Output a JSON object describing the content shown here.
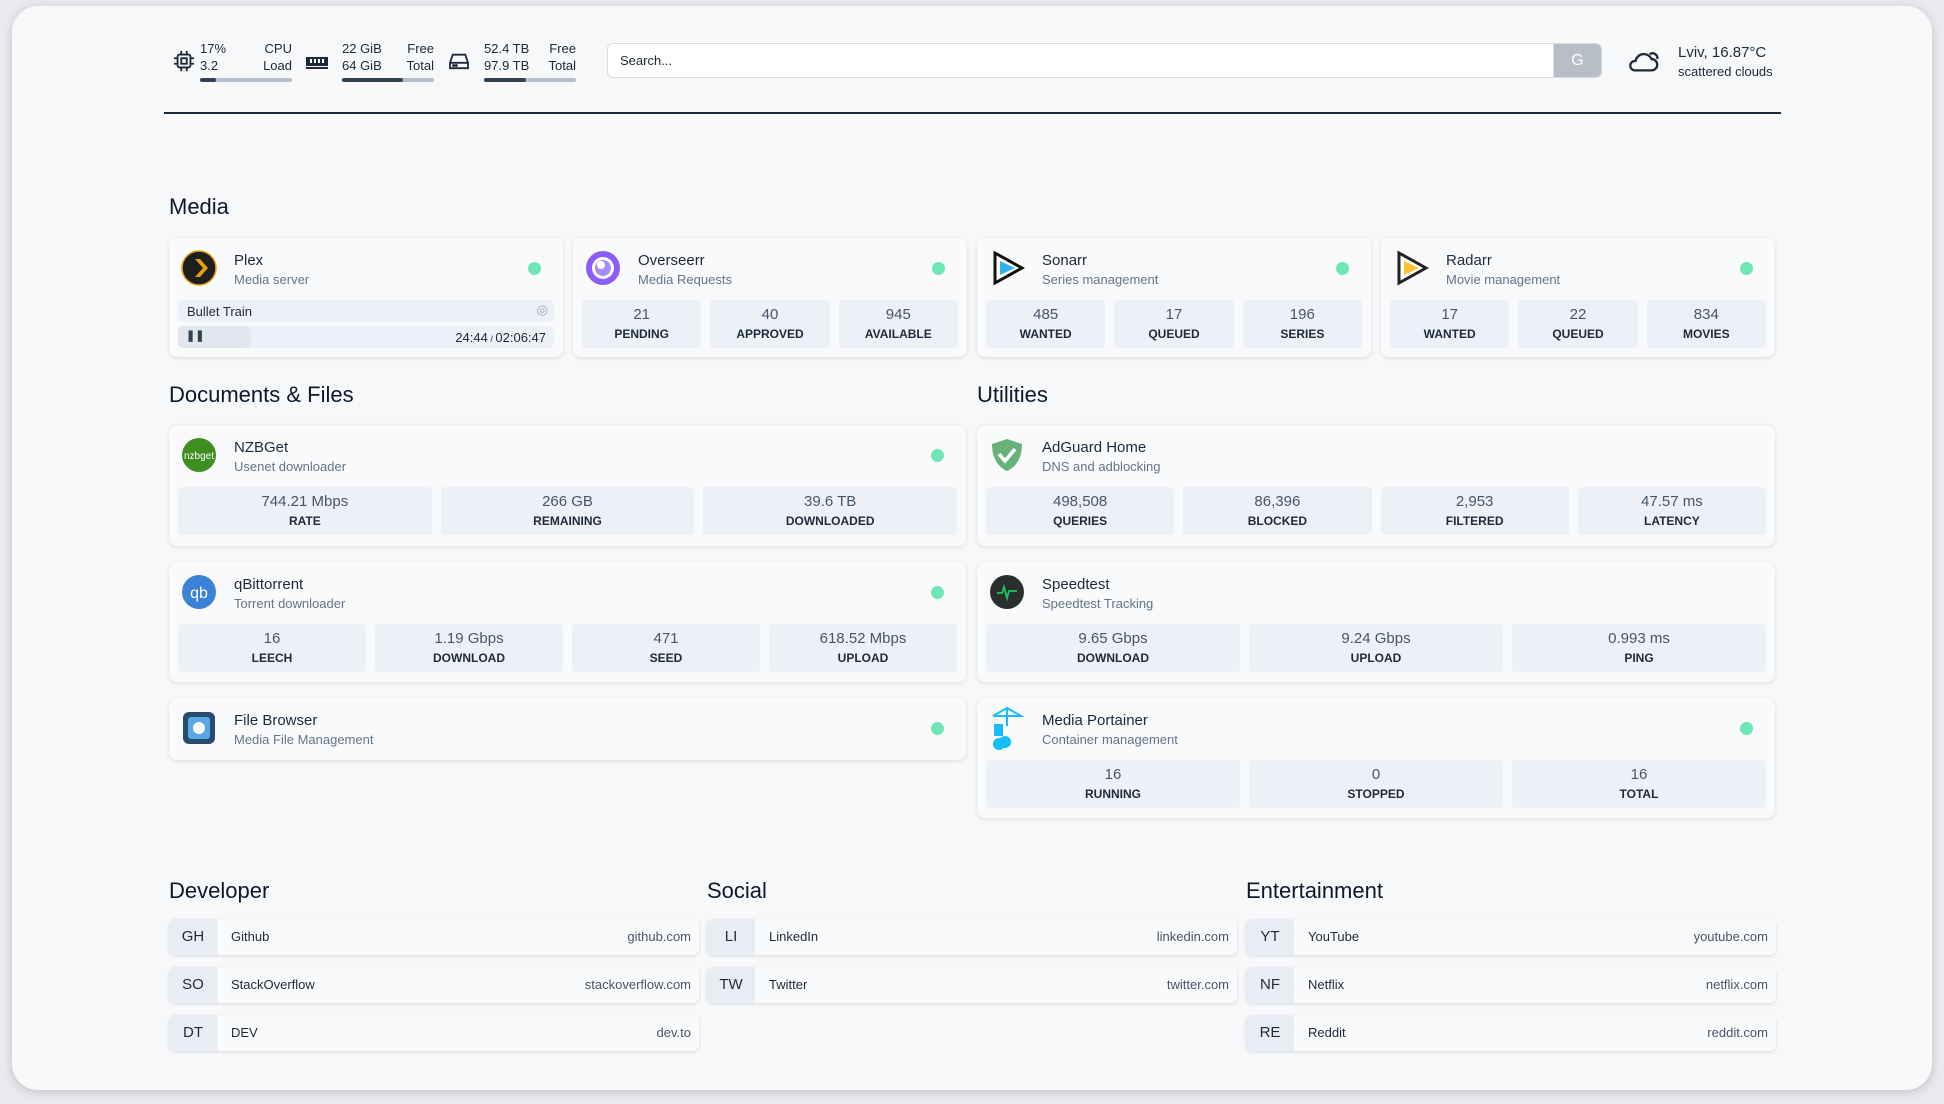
{
  "topbar": {
    "cpu": {
      "icon": "cpu-icon",
      "v1": "17%",
      "v2": "3.2",
      "l1": "CPU",
      "l2": "Load",
      "percent": 17
    },
    "memory": {
      "icon": "memory-icon",
      "v1": "22 GiB",
      "v2": "64 GiB",
      "l1": "Free",
      "l2": "Total",
      "percent": 66
    },
    "disk": {
      "icon": "hard-drive-icon",
      "v1": "52.4 TB",
      "v2": "97.9 TB",
      "l1": "Free",
      "l2": "Total",
      "percent": 46
    },
    "search": {
      "placeholder": "Search...",
      "button": "G"
    },
    "weather": {
      "icon": "cloud-sun-icon",
      "location": "Lviv, 16.87°C",
      "condition": "scattered clouds"
    }
  },
  "sections": {
    "media": "Media",
    "docs": "Documents & Files",
    "utilities": "Utilities",
    "developer": "Developer",
    "social": "Social",
    "entertainment": "Entertainment"
  },
  "plex": {
    "title": "Plex",
    "subtitle": "Media server",
    "icon": "plex-icon",
    "status": "online",
    "stream": {
      "title": "Bullet Train",
      "position": "24:44",
      "duration": "02:06:47",
      "progress_percent": 19.5,
      "state": "paused"
    }
  },
  "services": {
    "overseerr": {
      "title": "Overseerr",
      "subtitle": "Media Requests",
      "icon": "overseerr-icon",
      "status": "online",
      "stats": [
        {
          "v": "21",
          "k": "PENDING"
        },
        {
          "v": "40",
          "k": "APPROVED"
        },
        {
          "v": "945",
          "k": "AVAILABLE"
        }
      ]
    },
    "sonarr": {
      "title": "Sonarr",
      "subtitle": "Series management",
      "icon": "sonarr-icon",
      "status": "online",
      "stats": [
        {
          "v": "485",
          "k": "WANTED"
        },
        {
          "v": "17",
          "k": "QUEUED"
        },
        {
          "v": "196",
          "k": "SERIES"
        }
      ]
    },
    "radarr": {
      "title": "Radarr",
      "subtitle": "Movie management",
      "icon": "radarr-icon",
      "status": "online",
      "stats": [
        {
          "v": "17",
          "k": "WANTED"
        },
        {
          "v": "22",
          "k": "QUEUED"
        },
        {
          "v": "834",
          "k": "MOVIES"
        }
      ]
    },
    "nzbget": {
      "title": "NZBGet",
      "subtitle": "Usenet downloader",
      "icon": "nzbget-icon",
      "status": "online",
      "stats": [
        {
          "v": "744.21 Mbps",
          "k": "RATE"
        },
        {
          "v": "266 GB",
          "k": "REMAINING"
        },
        {
          "v": "39.6 TB",
          "k": "DOWNLOADED"
        }
      ]
    },
    "qbittorrent": {
      "title": "qBittorrent",
      "subtitle": "Torrent downloader",
      "icon": "qbittorrent-icon",
      "status": "online",
      "stats": [
        {
          "v": "16",
          "k": "LEECH"
        },
        {
          "v": "1.19 Gbps",
          "k": "DOWNLOAD"
        },
        {
          "v": "471",
          "k": "SEED"
        },
        {
          "v": "618.52 Mbps",
          "k": "UPLOAD"
        }
      ]
    },
    "filebrowser": {
      "title": "File Browser",
      "subtitle": "Media File Management",
      "icon": "file-browser-icon",
      "status": "online",
      "stats": []
    },
    "adguard": {
      "title": "AdGuard Home",
      "subtitle": "DNS and adblocking",
      "icon": "adguard-icon",
      "stats": [
        {
          "v": "498,508",
          "k": "QUERIES"
        },
        {
          "v": "86,396",
          "k": "BLOCKED"
        },
        {
          "v": "2,953",
          "k": "FILTERED"
        },
        {
          "v": "47.57 ms",
          "k": "LATENCY"
        }
      ]
    },
    "speedtest": {
      "title": "Speedtest",
      "subtitle": "Speedtest Tracking",
      "icon": "speedtest-icon",
      "stats": [
        {
          "v": "9.65 Gbps",
          "k": "DOWNLOAD"
        },
        {
          "v": "9.24 Gbps",
          "k": "UPLOAD"
        },
        {
          "v": "0.993 ms",
          "k": "PING"
        }
      ]
    },
    "portainer": {
      "title": "Media Portainer",
      "subtitle": "Container management",
      "icon": "portainer-icon",
      "status": "online",
      "stats": [
        {
          "v": "16",
          "k": "RUNNING"
        },
        {
          "v": "0",
          "k": "STOPPED"
        },
        {
          "v": "16",
          "k": "TOTAL"
        }
      ]
    }
  },
  "bookmarks": {
    "developer": [
      {
        "abbr": "GH",
        "name": "Github",
        "url": "github.com"
      },
      {
        "abbr": "SO",
        "name": "StackOverflow",
        "url": "stackoverflow.com"
      },
      {
        "abbr": "DT",
        "name": "DEV",
        "url": "dev.to"
      }
    ],
    "social": [
      {
        "abbr": "LI",
        "name": "LinkedIn",
        "url": "linkedin.com"
      },
      {
        "abbr": "TW",
        "name": "Twitter",
        "url": "twitter.com"
      }
    ],
    "entertainment": [
      {
        "abbr": "YT",
        "name": "YouTube",
        "url": "youtube.com"
      },
      {
        "abbr": "NF",
        "name": "Netflix",
        "url": "netflix.com"
      },
      {
        "abbr": "RE",
        "name": "Reddit",
        "url": "reddit.com"
      }
    ]
  },
  "colors": {
    "status_online": "#6ee7b7",
    "stat_box": "#edf1f7",
    "accent_dark": "#334155"
  }
}
